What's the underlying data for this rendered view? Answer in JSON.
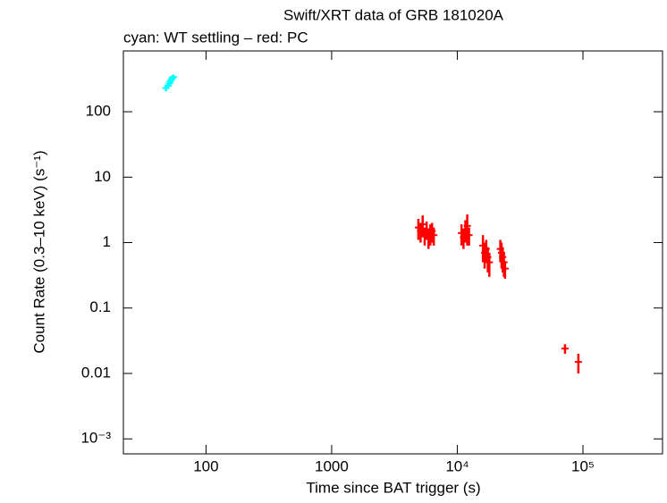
{
  "chart_data": {
    "type": "scatter",
    "title": "Swift/XRT data of GRB 181020A",
    "subtitle": "cyan: WT settling – red: PC",
    "xlabel": "Time since BAT trigger (s)",
    "ylabel": "Count Rate (0.3–10 keV) (s⁻¹)",
    "xscale": "log",
    "yscale": "log",
    "xlim": [
      22,
      430000
    ],
    "ylim": [
      0.00059,
      850
    ],
    "xticks": [
      100,
      1000,
      {
        "value": 10000,
        "label": "10⁴"
      },
      {
        "value": 100000,
        "label": "10⁵"
      }
    ],
    "yticks": [
      100,
      10,
      1,
      0.1,
      0.01,
      {
        "value": 0.001,
        "label": "10⁻³"
      }
    ],
    "series": [
      {
        "color": "#00ffff",
        "x": [
          48,
          50,
          51,
          52,
          53,
          54,
          55
        ],
        "values": [
          230,
          250,
          270,
          290,
          310,
          330,
          340
        ],
        "yerr": [
          25,
          25,
          25,
          30,
          30,
          30,
          30
        ]
      },
      {
        "color": "#ff0000",
        "x": [
          4900,
          5100,
          5300,
          5500,
          5700,
          5900,
          6100,
          6300,
          6500,
          10800,
          11200,
          11600,
          12000,
          12400,
          16000,
          16500,
          17000,
          17500,
          18000,
          22000,
          22500,
          23000,
          23500,
          24000,
          72000,
          92000
        ],
        "values": [
          1.7,
          1.5,
          1.9,
          1.3,
          1.6,
          1.2,
          1.4,
          1.5,
          1.3,
          1.4,
          1.2,
          1.6,
          1.8,
          1.3,
          0.9,
          0.7,
          0.8,
          0.6,
          0.5,
          0.8,
          0.7,
          0.6,
          0.5,
          0.4,
          0.024,
          0.015
        ],
        "yerr": [
          0.6,
          0.5,
          0.7,
          0.4,
          0.5,
          0.4,
          0.5,
          0.5,
          0.4,
          0.5,
          0.4,
          0.6,
          0.9,
          0.4,
          0.4,
          0.3,
          0.3,
          0.25,
          0.2,
          0.3,
          0.3,
          0.25,
          0.2,
          0.12,
          0.004,
          0.005
        ]
      }
    ]
  }
}
